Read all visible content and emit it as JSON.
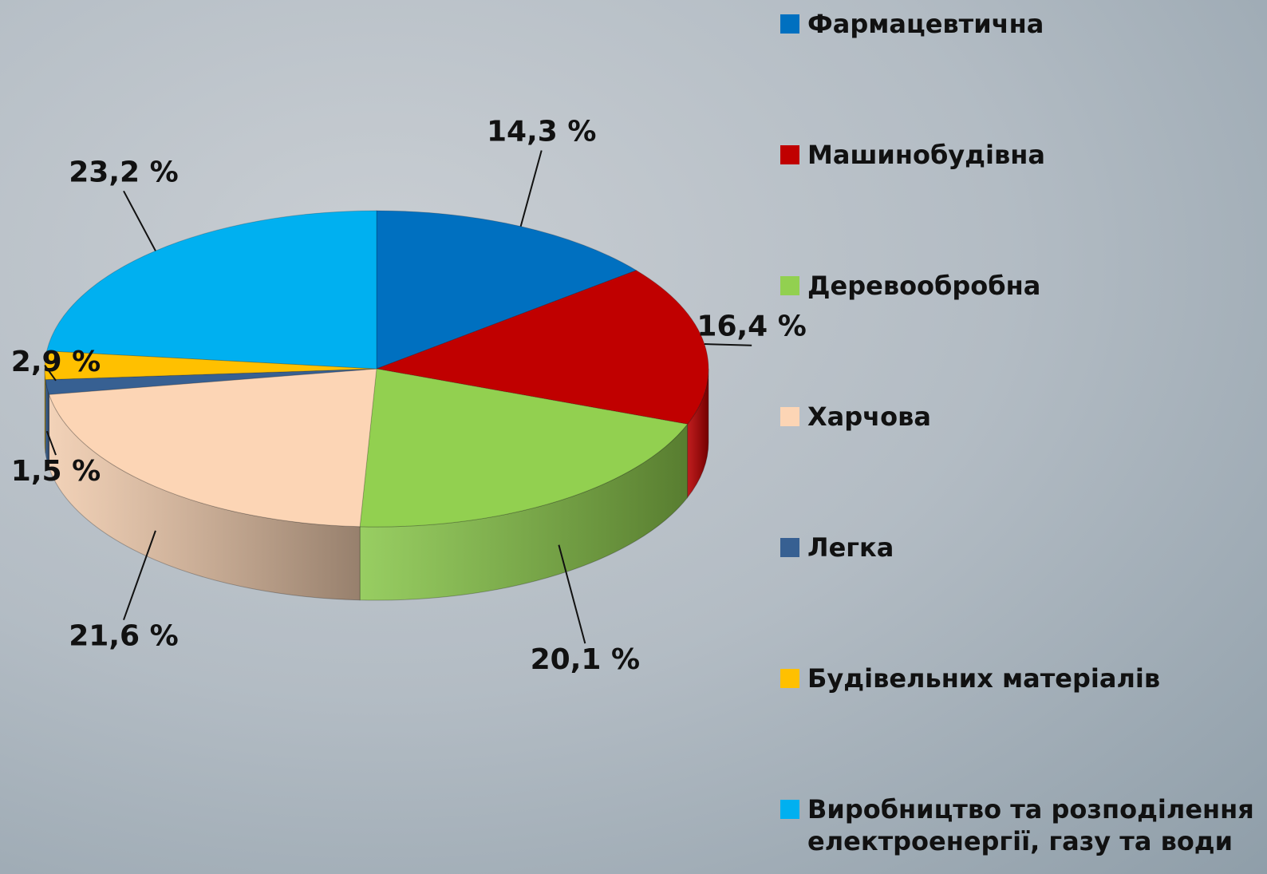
{
  "chart_data": {
    "type": "pie3d",
    "categories": [
      "Фармацевтична",
      "Машинобудівна",
      "Деревообробна",
      "Харчова",
      "Легка",
      "Будівельних матеріалів",
      "Виробництво та розподілення електроенергії, газу та води"
    ],
    "values": [
      14.3,
      16.4,
      20.1,
      21.6,
      1.5,
      2.9,
      23.2
    ],
    "value_labels": [
      "14,3 %",
      "16,4 %",
      "20,1 %",
      "21,6 %",
      "1,5 %",
      "2,9 %",
      "23,2 %"
    ],
    "colors": [
      "#0070c0",
      "#c00000",
      "#92d050",
      "#fcd5b5",
      "#376092",
      "#ffc000",
      "#00b0f0"
    ],
    "legend": "right"
  }
}
